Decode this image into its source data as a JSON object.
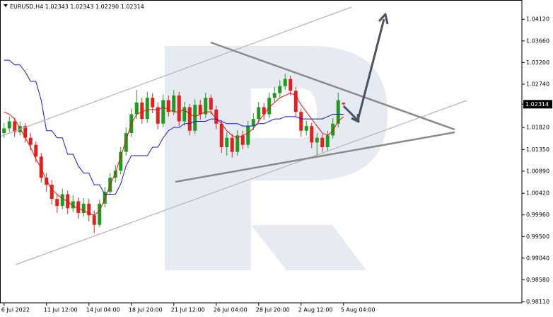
{
  "chart_data": {
    "type": "candlestick",
    "symbol": "EURUSD,H4",
    "ohlc_labels": [
      "1.02343",
      "1.02343",
      "1.02290",
      "1.02314"
    ],
    "categories": [
      "6 Jul 2022",
      null,
      null,
      null,
      null,
      null,
      null,
      null,
      "11 Jul 12:00",
      null,
      null,
      null,
      null,
      null,
      null,
      null,
      "14 Jul 04:00",
      null,
      null,
      null,
      null,
      null,
      null,
      null,
      "18 Jul 20:00",
      null,
      null,
      null,
      null,
      null,
      null,
      null,
      "21 Jul 12:00",
      null,
      null,
      null,
      null,
      null,
      null,
      null,
      "26 Jul 04:00",
      null,
      null,
      null,
      null,
      null,
      null,
      null,
      "28 Jul 20:00",
      null,
      null,
      null,
      null,
      null,
      null,
      null,
      "2 Aug 12:00",
      null,
      null,
      null,
      null,
      null,
      null,
      null,
      "5 Aug 04:00"
    ],
    "candles": {
      "up_color": "#1f9a1f",
      "down_color": "#e3211c",
      "open": [
        1.017,
        1.018,
        1.0195,
        1.0172,
        1.0185,
        1.016,
        1.0145,
        1.012,
        1.0075,
        1.006,
        1.003,
        1.0015,
        1.004,
        1.001,
        1.0025,
        1.0,
        1.002,
        0.9995,
        0.9975,
        1.002,
        1.0045,
        1.0075,
        1.009,
        1.013,
        1.017,
        1.021,
        1.0235,
        1.02,
        1.0245,
        1.0225,
        1.019,
        1.024,
        1.0215,
        1.025,
        1.0195,
        1.0225,
        1.0175,
        1.023,
        1.021,
        1.0245,
        1.022,
        1.019,
        1.014,
        1.016,
        1.013,
        1.0165,
        1.0145,
        1.0185,
        1.02,
        1.0225,
        1.021,
        1.0245,
        1.0255,
        1.027,
        1.0285,
        1.026,
        1.0215,
        1.0175,
        1.0185,
        1.015,
        1.016,
        1.014,
        1.0165,
        1.019,
        1.02343
      ],
      "high": [
        1.0192,
        1.0205,
        1.0203,
        1.0194,
        1.0191,
        1.017,
        1.0152,
        1.0128,
        1.0085,
        1.007,
        1.004,
        1.0052,
        1.0048,
        1.0038,
        1.0033,
        1.0032,
        1.003,
        1.0005,
        1.0028,
        1.0055,
        1.0085,
        1.0102,
        1.014,
        1.0182,
        1.0222,
        1.0262,
        1.0245,
        1.0258,
        1.0255,
        1.0235,
        1.0252,
        1.025,
        1.0262,
        1.0258,
        1.0236,
        1.0232,
        1.0242,
        1.024,
        1.0256,
        1.0252,
        1.0228,
        1.0198,
        1.0172,
        1.0168,
        1.0176,
        1.0175,
        1.0196,
        1.0212,
        1.0236,
        1.0234,
        1.0256,
        1.0268,
        1.0282,
        1.0296,
        1.0292,
        1.0268,
        1.0222,
        1.0196,
        1.0192,
        1.017,
        1.0168,
        1.0175,
        1.0202,
        1.0256,
        1.02343
      ],
      "low": [
        1.016,
        1.0172,
        1.0162,
        1.0165,
        1.015,
        1.0133,
        1.0108,
        1.0065,
        1.0045,
        1.0018,
        1.0,
        1.0008,
        0.9998,
        1.0002,
        0.9988,
        0.9992,
        0.9982,
        0.9957,
        0.997,
        1.0012,
        1.0038,
        1.0065,
        1.0082,
        1.0122,
        1.0162,
        1.02,
        1.019,
        1.0192,
        1.0212,
        1.0178,
        1.0182,
        1.0205,
        1.0208,
        1.0185,
        1.0186,
        1.0165,
        1.0168,
        1.0198,
        1.0202,
        1.021,
        1.0178,
        1.0128,
        1.0122,
        1.0118,
        1.0122,
        1.0135,
        1.0138,
        1.0176,
        1.0192,
        1.0198,
        1.0202,
        1.0236,
        1.0246,
        1.0262,
        1.025,
        1.0205,
        1.0162,
        1.0165,
        1.0138,
        1.0118,
        1.013,
        1.0132,
        1.0158,
        1.0182,
        1.0229
      ],
      "close": [
        1.018,
        1.0195,
        1.0172,
        1.0185,
        1.016,
        1.0145,
        1.012,
        1.0075,
        1.006,
        1.003,
        1.0015,
        1.004,
        1.001,
        1.0025,
        1.0,
        1.002,
        0.9995,
        0.9975,
        1.002,
        1.0045,
        1.0075,
        1.009,
        1.013,
        1.017,
        1.021,
        1.0235,
        1.02,
        1.0245,
        1.0225,
        1.019,
        1.024,
        1.0215,
        1.025,
        1.0195,
        1.0225,
        1.0175,
        1.023,
        1.021,
        1.0245,
        1.022,
        1.019,
        1.014,
        1.016,
        1.013,
        1.0165,
        1.0145,
        1.0185,
        1.02,
        1.0225,
        1.021,
        1.0245,
        1.0255,
        1.027,
        1.0285,
        1.026,
        1.0215,
        1.0175,
        1.0185,
        1.015,
        1.016,
        1.014,
        1.0165,
        1.019,
        1.024,
        1.02314
      ]
    },
    "lines": [
      {
        "color": "#e81010",
        "values": [
          1.0215,
          1.021,
          1.02,
          1.018,
          1.016,
          1.014,
          1.0115,
          1.0095,
          1.007,
          1.005,
          1.004,
          1.003,
          1.0025,
          1.0015,
          1.001,
          1.0005,
          1.0,
          0.9995,
          1.0005,
          1.003,
          1.006,
          1.0085,
          1.012,
          1.0155,
          1.019,
          1.021,
          1.0215,
          1.022,
          1.022,
          1.022,
          1.0225,
          1.022,
          1.0215,
          1.0215,
          1.022,
          1.021,
          1.0205,
          1.021,
          1.0215,
          1.0215,
          1.02,
          1.019,
          1.0175,
          1.0165,
          1.016,
          1.0165,
          1.017,
          1.018,
          1.0195,
          1.021,
          1.0225,
          1.0235,
          1.0245,
          1.025,
          1.0255,
          1.025,
          1.023,
          1.0215,
          1.02,
          1.0185,
          1.017,
          1.0165,
          1.0175,
          1.0195,
          1.0205
        ]
      },
      {
        "color": "#1515e0",
        "values": [
          1.0325,
          1.0325,
          1.0315,
          1.0315,
          1.03,
          1.028,
          1.028,
          1.024,
          1.0175,
          1.0175,
          1.016,
          1.016,
          1.0125,
          1.0125,
          1.01,
          1.0085,
          1.0085,
          1.006,
          1.006,
          1.004,
          1.004,
          1.004,
          1.0062,
          1.01,
          1.0122,
          1.0122,
          1.0122,
          1.0122,
          1.014,
          1.014,
          1.016,
          1.0175,
          1.0182,
          1.0182,
          1.019,
          1.019,
          1.0195,
          1.0195,
          1.0195,
          1.02,
          1.02,
          1.0195,
          1.019,
          1.019,
          1.019,
          1.0185,
          1.0185,
          1.0185,
          1.019,
          1.019,
          1.0195,
          1.02,
          1.02,
          1.0205,
          1.0205,
          1.0205,
          1.02,
          1.02,
          1.02,
          1.02,
          1.02,
          1.0205,
          1.021,
          1.021,
          1.021
        ]
      }
    ],
    "ylim": [
      0.9809,
      1.0453
    ],
    "yticks": [
      {
        "value": 1.0412,
        "label": "1.04120"
      },
      {
        "value": 1.0366,
        "label": "1.03660"
      },
      {
        "value": 1.032,
        "label": "1.03200"
      },
      {
        "value": 1.0274,
        "label": "1.02740"
      },
      {
        "value": 1.0182,
        "label": "1.01820"
      },
      {
        "value": 1.0135,
        "label": "1.01350"
      },
      {
        "value": 1.0089,
        "label": "1.00890"
      },
      {
        "value": 1.0042,
        "label": "1.00420"
      },
      {
        "value": 0.9996,
        "label": "0.99960"
      },
      {
        "value": 0.995,
        "label": "0.99500"
      },
      {
        "value": 0.9904,
        "label": "0.99040"
      },
      {
        "value": 0.9858,
        "label": "0.98580"
      },
      {
        "value": 0.9811,
        "label": "0.98110"
      }
    ],
    "grid": false
  }
}
